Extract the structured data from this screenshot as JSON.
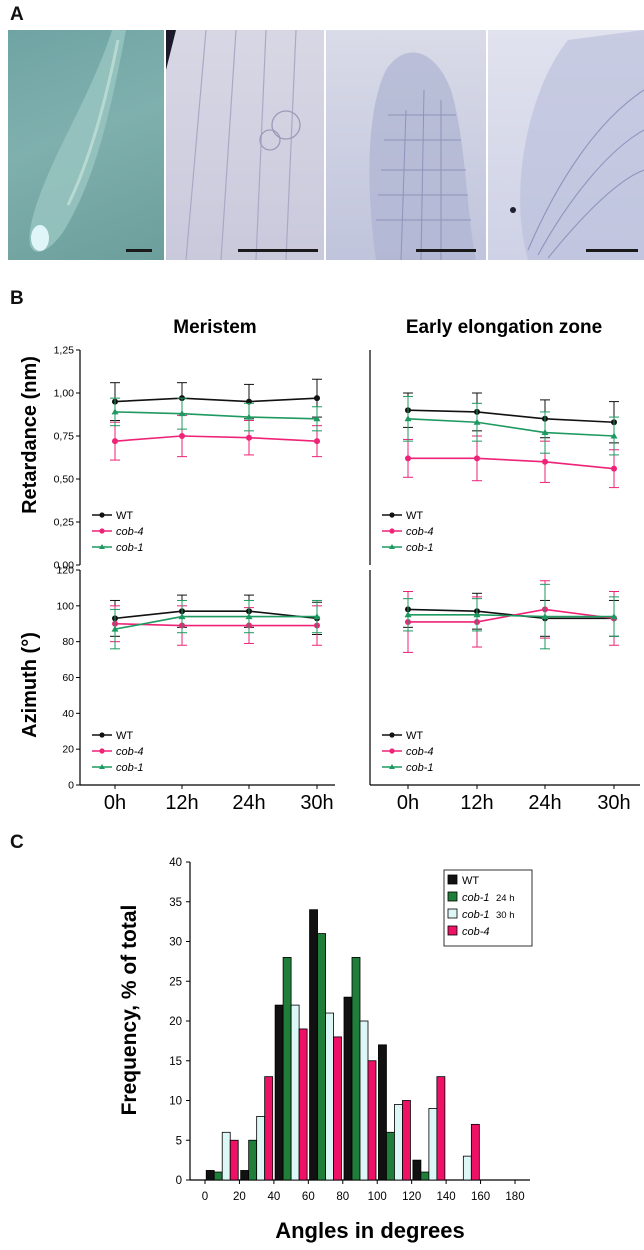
{
  "panels": {
    "a": {
      "letter": "A"
    },
    "b": {
      "letter": "B"
    },
    "c": {
      "letter": "C"
    }
  },
  "colors": {
    "wt": "#111111",
    "cob4": "#ee2277",
    "cob1": "#1e9960",
    "cob1_30": "#ddf6f6",
    "bar_cob4": "#ee1166",
    "bar_cob1_24": "#1f7f3a"
  },
  "panel_b": {
    "col_titles": [
      "Meristem",
      "Early elongation zone"
    ],
    "retardance_ylabel": "Retardance (nm)",
    "azimuth_ylabel": "Azimuth (°)",
    "retardance_ticks": [
      "0,00",
      "0,25",
      "0,50",
      "0,75",
      "1,00",
      "1,25"
    ],
    "azimuth_ticks": [
      "0",
      "20",
      "40",
      "60",
      "80",
      "100",
      "120"
    ],
    "x_ticks": [
      "0h",
      "12h",
      "24h",
      "30h"
    ],
    "legend": [
      "WT",
      "cob-4",
      "cob-1"
    ]
  },
  "chart_data": [
    {
      "type": "line",
      "title": "Meristem",
      "ylabel": "Retardance (nm)",
      "x": [
        "0h",
        "12h",
        "24h",
        "30h"
      ],
      "ylim": [
        0,
        1.25
      ],
      "series": [
        {
          "name": "WT",
          "values": [
            0.95,
            0.97,
            0.95,
            0.97
          ],
          "error": [
            0.11,
            0.09,
            0.1,
            0.11
          ]
        },
        {
          "name": "cob-4",
          "values": [
            0.72,
            0.75,
            0.74,
            0.72
          ],
          "error": [
            0.11,
            0.12,
            0.1,
            0.09
          ]
        },
        {
          "name": "cob-1",
          "values": [
            0.89,
            0.88,
            0.86,
            0.85
          ],
          "error": [
            0.08,
            0.09,
            0.08,
            0.07
          ]
        }
      ]
    },
    {
      "type": "line",
      "title": "Early elongation zone",
      "ylabel": "Retardance (nm)",
      "x": [
        "0h",
        "12h",
        "24h",
        "30h"
      ],
      "ylim": [
        0,
        1.25
      ],
      "series": [
        {
          "name": "WT",
          "values": [
            0.9,
            0.89,
            0.85,
            0.83
          ],
          "error": [
            0.1,
            0.11,
            0.11,
            0.12
          ]
        },
        {
          "name": "cob-4",
          "values": [
            0.62,
            0.62,
            0.6,
            0.56
          ],
          "error": [
            0.11,
            0.13,
            0.12,
            0.11
          ]
        },
        {
          "name": "cob-1",
          "values": [
            0.85,
            0.83,
            0.77,
            0.75
          ],
          "error": [
            0.13,
            0.11,
            0.12,
            0.11
          ]
        }
      ]
    },
    {
      "type": "line",
      "title": "Meristem",
      "ylabel": "Azimuth (°)",
      "x": [
        "0h",
        "12h",
        "24h",
        "30h"
      ],
      "ylim": [
        0,
        120
      ],
      "series": [
        {
          "name": "WT",
          "values": [
            93,
            97,
            97,
            93
          ],
          "error": [
            10,
            9,
            9,
            9
          ]
        },
        {
          "name": "cob-4",
          "values": [
            90,
            89,
            89,
            89
          ],
          "error": [
            10,
            11,
            10,
            11
          ]
        },
        {
          "name": "cob-1",
          "values": [
            87,
            94,
            94,
            94
          ],
          "error": [
            11,
            9,
            9,
            9
          ]
        }
      ]
    },
    {
      "type": "line",
      "title": "Early elongation zone",
      "ylabel": "Azimuth (°)",
      "x": [
        "0h",
        "12h",
        "24h",
        "30h"
      ],
      "ylim": [
        0,
        120
      ],
      "series": [
        {
          "name": "WT",
          "values": [
            98,
            97,
            93,
            93
          ],
          "error": [
            10,
            10,
            10,
            10
          ]
        },
        {
          "name": "cob-4",
          "values": [
            91,
            91,
            98,
            93
          ],
          "error": [
            17,
            14,
            16,
            15
          ]
        },
        {
          "name": "cob-1",
          "values": [
            95,
            95,
            94,
            94
          ],
          "error": [
            9,
            9,
            18,
            11
          ]
        }
      ]
    },
    {
      "type": "bar",
      "xlabel": "Angles in degrees",
      "ylabel": "Frequency, % of total",
      "categories": [
        "20",
        "40",
        "60",
        "80",
        "100",
        "120",
        "140",
        "160"
      ],
      "x_ticks": [
        "0",
        "20",
        "40",
        "60",
        "80",
        "100",
        "120",
        "140",
        "160",
        "180"
      ],
      "y_ticks": [
        "0",
        "5",
        "10",
        "15",
        "20",
        "25",
        "30",
        "35",
        "40"
      ],
      "ylim": [
        0,
        40
      ],
      "legend_labels": [
        "WT",
        "cob-1",
        "cob-1",
        "cob-4"
      ],
      "legend_suffixes": [
        "",
        "24 h",
        "30 h",
        ""
      ],
      "series": [
        {
          "name": "WT",
          "values": [
            1.2,
            1.2,
            22,
            34,
            23,
            17,
            2.5,
            0
          ]
        },
        {
          "name": "cob-1 24 h",
          "values": [
            1.0,
            5,
            28,
            31,
            28,
            6,
            1.0,
            0
          ]
        },
        {
          "name": "cob-1 30 h",
          "values": [
            6,
            8,
            22,
            21,
            20,
            9.5,
            9,
            3
          ]
        },
        {
          "name": "cob-4",
          "values": [
            5,
            13,
            19,
            18,
            15,
            10,
            13,
            7
          ]
        }
      ]
    }
  ]
}
